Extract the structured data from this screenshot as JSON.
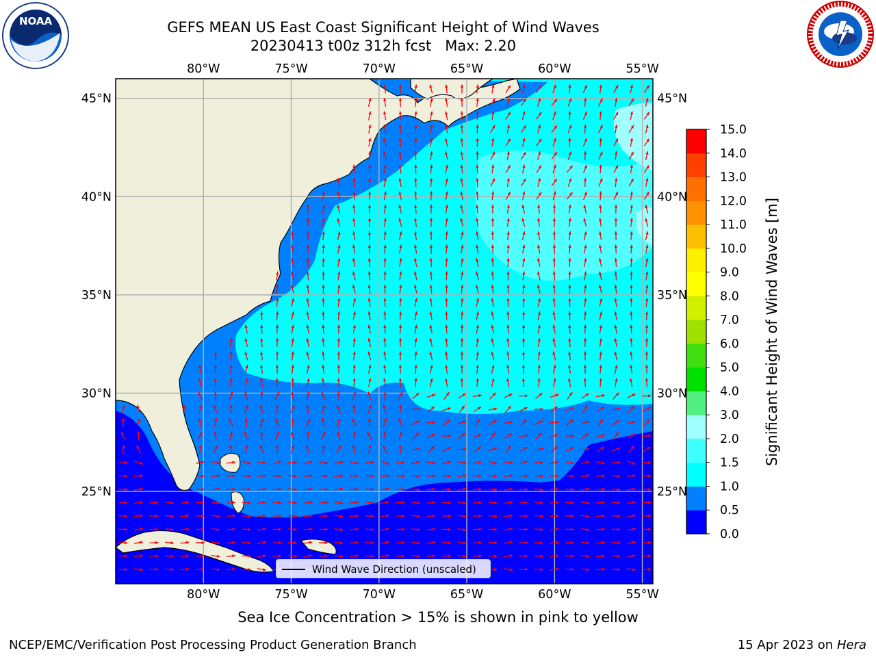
{
  "title": {
    "line1": "GEFS MEAN US East Coast Significant Height of Wind Waves",
    "line2": "20230413 t00z 312h fcst   Max: 2.20"
  },
  "logos": {
    "left": "noaa-logo",
    "left_text": "NOAA",
    "right": "nws-logo"
  },
  "map": {
    "lon_ticks": [
      "80°W",
      "75°W",
      "70°W",
      "65°W",
      "60°W",
      "55°W"
    ],
    "lon_values": [
      -80,
      -75,
      -70,
      -65,
      -60,
      -55
    ],
    "lat_ticks": [
      "45°N",
      "40°N",
      "35°N",
      "30°N",
      "25°N"
    ],
    "lat_values": [
      45,
      40,
      35,
      30,
      25
    ],
    "extent": {
      "lon": [
        -85,
        -54.4
      ],
      "lat": [
        20.3,
        46
      ]
    },
    "colors": {
      "land": "#efefdc",
      "ocean_0_0.5": "#0000ff",
      "ocean_0.5_1": "#0080ff",
      "ocean_1_1.5": "#00ffff",
      "ocean_1.5_2": "#40ffff",
      "grid": "#b0b0b0",
      "arrow": "#ff0000"
    }
  },
  "legend": {
    "label": "Wind Wave Direction (unscaled)"
  },
  "colorbar": {
    "title": "Significant Height of Wind Waves [m]",
    "ticks": [
      "0.0",
      "0.5",
      "1.0",
      "1.5",
      "2.0",
      "3.0",
      "4.0",
      "5.0",
      "6.0",
      "7.0",
      "8.0",
      "9.0",
      "10.0",
      "11.0",
      "12.0",
      "13.0",
      "14.0",
      "15.0"
    ],
    "colors": [
      "#0000ff",
      "#0080ff",
      "#00ffff",
      "#40ffff",
      "#a0ffff",
      "#50f080",
      "#00e000",
      "#40e010",
      "#a0e000",
      "#d0f000",
      "#ffff00",
      "#fff000",
      "#ffc000",
      "#ff9000",
      "#ff7000",
      "#ff4000",
      "#ff0000"
    ]
  },
  "caption": "Sea Ice Concentration > 15% is shown in pink to yellow",
  "footer": {
    "left": "NCEP/EMC/Verification Post Processing Product Generation Branch",
    "right_date": "15 Apr 2023 on ",
    "right_host": "Hera"
  }
}
